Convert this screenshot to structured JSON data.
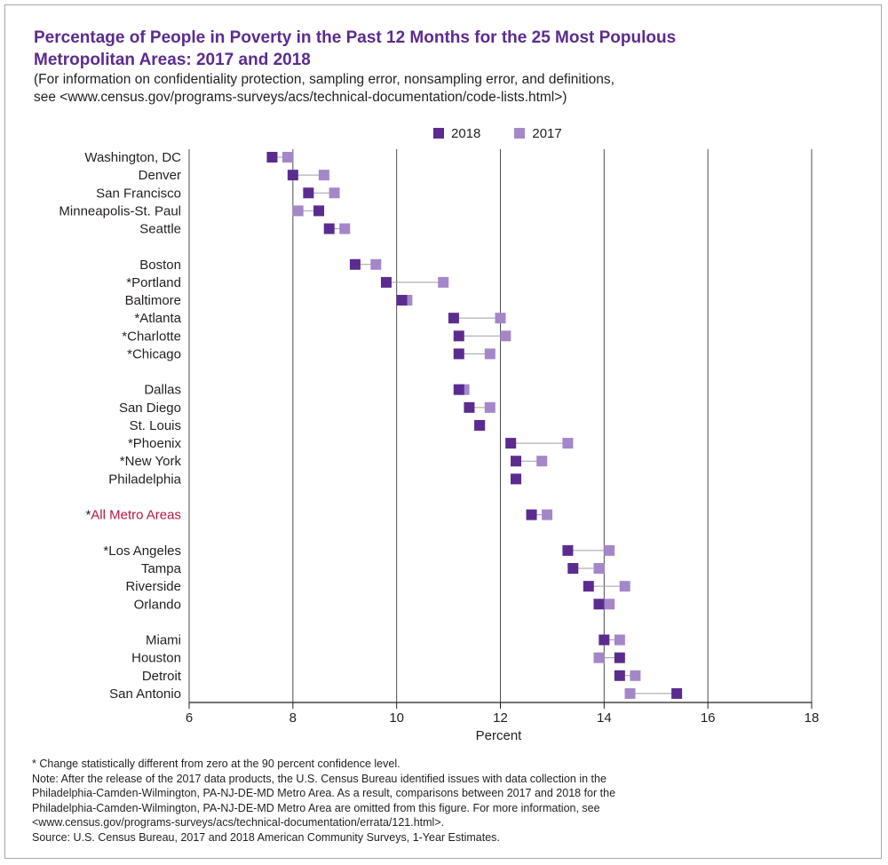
{
  "title_line1": "Percentage of People in Poverty in the Past 12 Months for the 25 Most Populous",
  "title_line2": "Metropolitan Areas: 2017 and 2018",
  "subtitle_line1": "(For information on confidentiality protection, sampling error, nonsampling error, and definitions,",
  "subtitle_line2": "see <www.census.gov/programs-surveys/acs/technical-documentation/code-lists.html>)",
  "legend": {
    "s2018": "2018",
    "s2017": "2017"
  },
  "colors": {
    "s2018": "#5b2c8f",
    "s2017": "#a487c9",
    "highlight_label": "#b5183f",
    "connector": "#9d9fa2",
    "gridline": "#231f20"
  },
  "chart_data": {
    "type": "dumbbell",
    "title": "Percentage of People in Poverty in the Past 12 Months for the 25 Most Populous Metropolitan Areas: 2017 and 2018",
    "xlabel": "Percent",
    "ylabel": "",
    "xlim": [
      6,
      18
    ],
    "xticks": [
      6,
      8,
      10,
      12,
      14,
      16,
      18
    ],
    "series_names": [
      "2018",
      "2017"
    ],
    "categories": [
      {
        "label": "Washington, DC",
        "v2018": 7.6,
        "v2017": 7.9
      },
      {
        "label": "Denver",
        "v2018": 8.0,
        "v2017": 8.6
      },
      {
        "label": "San Francisco",
        "v2018": 8.3,
        "v2017": 8.8
      },
      {
        "label": "Minneapolis-St. Paul",
        "v2018": 8.5,
        "v2017": 8.1
      },
      {
        "label": "Seattle",
        "v2018": 8.7,
        "v2017": 9.0
      },
      null,
      {
        "label": "Boston",
        "v2018": 9.2,
        "v2017": 9.6
      },
      {
        "label": "*Portland",
        "v2018": 9.8,
        "v2017": 10.9
      },
      {
        "label": "Baltimore",
        "v2018": 10.1,
        "v2017": 10.2
      },
      {
        "label": "*Atlanta",
        "v2018": 11.1,
        "v2017": 12.0
      },
      {
        "label": "*Charlotte",
        "v2018": 11.2,
        "v2017": 12.1
      },
      {
        "label": "*Chicago",
        "v2018": 11.2,
        "v2017": 11.8
      },
      null,
      {
        "label": "Dallas",
        "v2018": 11.2,
        "v2017": 11.3
      },
      {
        "label": "San Diego",
        "v2018": 11.4,
        "v2017": 11.8
      },
      {
        "label": "St. Louis",
        "v2018": 11.6,
        "v2017": 11.6
      },
      {
        "label": "*Phoenix",
        "v2018": 12.2,
        "v2017": 13.3
      },
      {
        "label": "*New York",
        "v2018": 12.3,
        "v2017": 12.8
      },
      {
        "label": "Philadelphia",
        "v2018": 12.3,
        "v2017": null
      },
      null,
      {
        "label": "All Metro Areas",
        "asterisk": "*",
        "highlight": true,
        "v2018": 12.6,
        "v2017": 12.9
      },
      null,
      {
        "label": "*Los Angeles",
        "v2018": 13.3,
        "v2017": 14.1
      },
      {
        "label": "Tampa",
        "v2018": 13.4,
        "v2017": 13.9
      },
      {
        "label": "Riverside",
        "v2018": 13.7,
        "v2017": 14.4
      },
      {
        "label": "Orlando",
        "v2018": 13.9,
        "v2017": 14.1
      },
      null,
      {
        "label": "Miami",
        "v2018": 14.0,
        "v2017": 14.3
      },
      {
        "label": "Houston",
        "v2018": 14.3,
        "v2017": 13.9
      },
      {
        "label": "Detroit",
        "v2018": 14.3,
        "v2017": 14.6
      },
      {
        "label": "San Antonio",
        "v2018": 15.4,
        "v2017": 14.5
      }
    ]
  },
  "notes": [
    "* Change statistically different from zero at the 90 percent confidence level.",
    "Note: After the release of the 2017 data products, the U.S. Census Bureau identified issues with data collection in the",
    "Philadelphia-Camden-Wilmington, PA-NJ-DE-MD Metro Area. As a result, comparisons between 2017 and 2018 for the",
    "Philadelphia-Camden-Wilmington, PA-NJ-DE-MD Metro Area are omitted from this figure. For more information, see",
    "<www.census.gov/programs-surveys/acs/technical-documentation/errata/121.html>.",
    "Source: U.S. Census Bureau, 2017 and 2018 American Community Surveys, 1-Year Estimates."
  ]
}
